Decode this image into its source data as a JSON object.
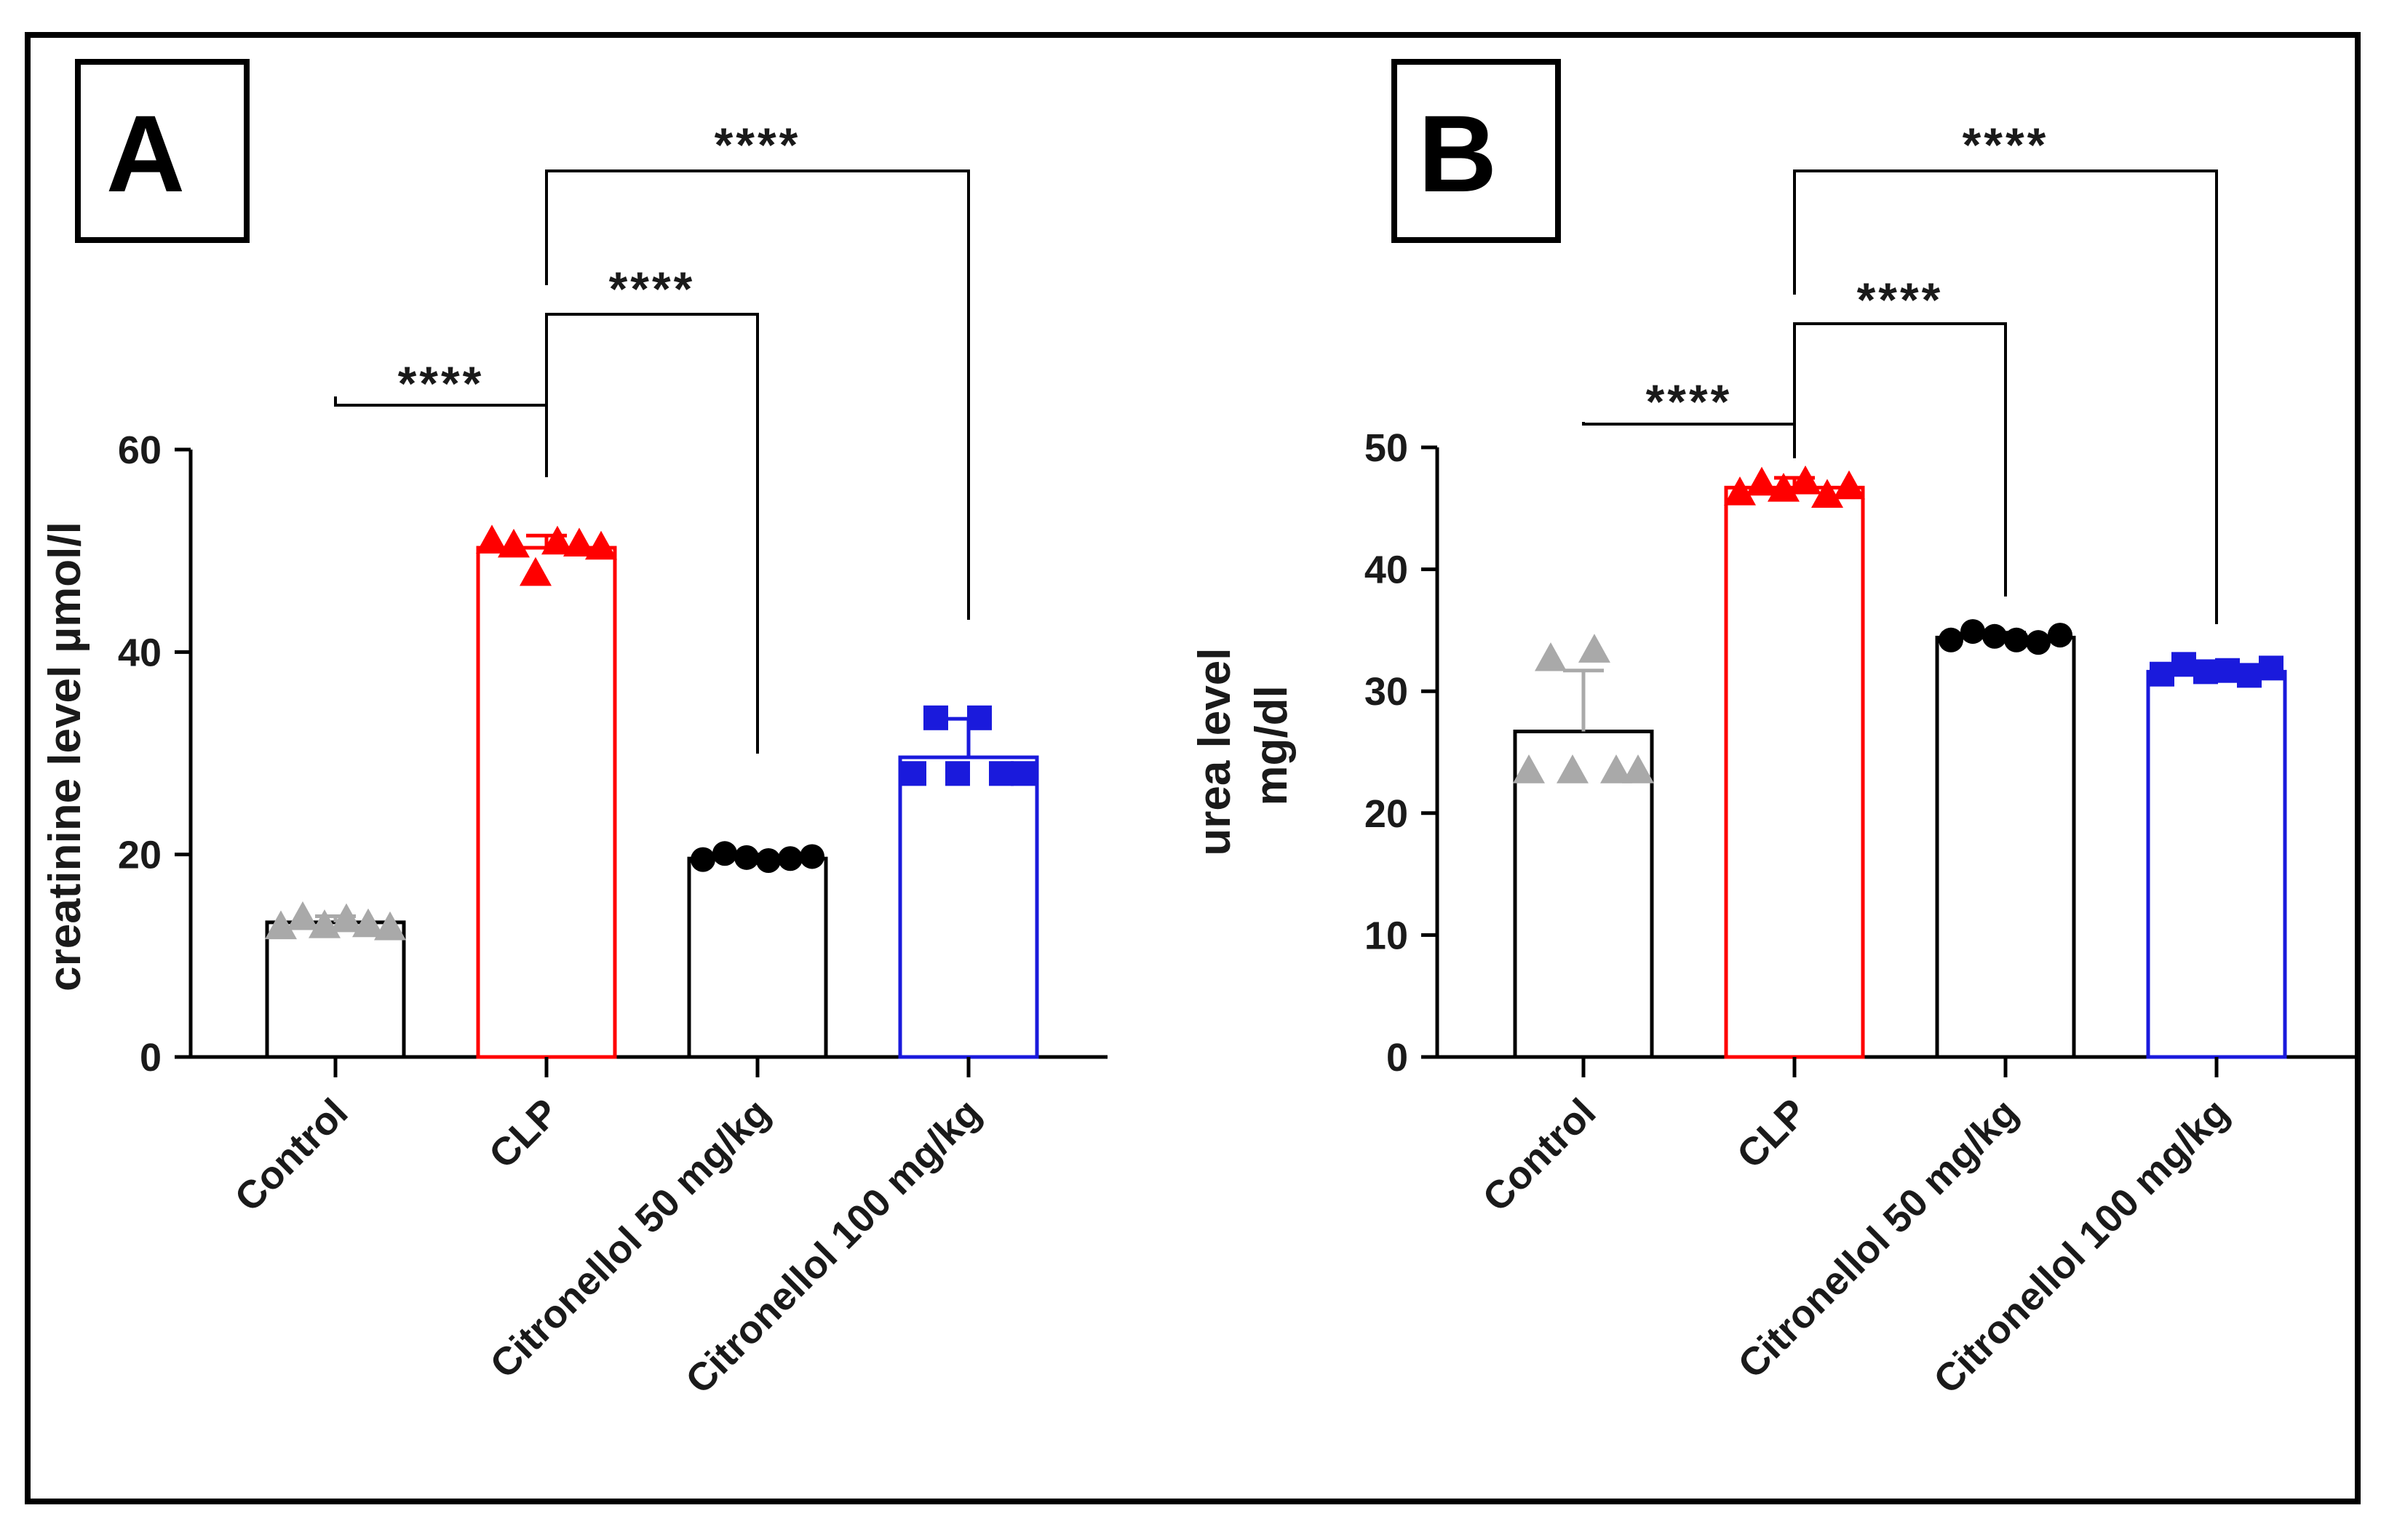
{
  "colors": {
    "control": "#a9a9a9",
    "clp": "#ff0000",
    "cit50": "#000000",
    "cit100": "#1a1adc",
    "axis": "#000000"
  },
  "chart_data": [
    {
      "type": "bar",
      "panel": "A",
      "title": "",
      "xlabel": "",
      "ylabel": "creatinine level µmol/l",
      "ylim": [
        0,
        60
      ],
      "yticks": [
        0,
        20,
        40,
        60
      ],
      "ytick_labels": [
        "0",
        "20",
        "40",
        "60"
      ],
      "categories": [
        "Control",
        "CLP",
        "Citronellol 50 mg/kg",
        "Citronellol 100 mg/kg"
      ],
      "values": [
        13.3,
        50.3,
        19.6,
        29.6
      ],
      "error": [
        0.6,
        1.2,
        0.4,
        3.8
      ],
      "points": [
        [
          12.9,
          13.8,
          13.0,
          13.6,
          13.1,
          12.8
        ],
        [
          51.0,
          50.6,
          47.8,
          50.9,
          50.7,
          50.4
        ],
        [
          19.5,
          20.1,
          19.7,
          19.4,
          19.6,
          19.8
        ],
        [
          28.0,
          33.5,
          28.0,
          33.5,
          28.0,
          28.0
        ]
      ],
      "markers": [
        "triangle",
        "triangle",
        "circle",
        "square"
      ],
      "significance": [
        {
          "from": 0,
          "to": 1,
          "label": "****"
        },
        {
          "from": 1,
          "to": 2,
          "label": "****"
        },
        {
          "from": 1,
          "to": 3,
          "label": "****"
        }
      ]
    },
    {
      "type": "bar",
      "panel": "B",
      "title": "",
      "xlabel": "",
      "ylabel": "urea level mg/dl",
      "ylabel_lines": [
        "urea level",
        "mg/dl"
      ],
      "ylim": [
        0,
        50
      ],
      "yticks": [
        0,
        10,
        20,
        30,
        40,
        50
      ],
      "ytick_labels": [
        "0",
        "10",
        "20",
        "30",
        "40",
        "50"
      ],
      "categories": [
        "Control",
        "CLP",
        "Citronellol 50 mg/kg",
        "Citronellol 100 mg/kg"
      ],
      "values": [
        26.7,
        46.7,
        34.4,
        31.6
      ],
      "error": [
        5.0,
        0.8,
        0.4,
        0.4
      ],
      "points": [
        [
          23.5,
          32.7,
          23.5,
          33.4,
          23.5,
          23.5
        ],
        [
          46.3,
          47.1,
          46.6,
          47.2,
          46.1,
          46.8
        ],
        [
          34.2,
          34.9,
          34.5,
          34.2,
          34.0,
          34.6
        ],
        [
          31.4,
          32.2,
          31.6,
          31.7,
          31.3,
          31.9
        ]
      ],
      "markers": [
        "triangle",
        "triangle",
        "circle",
        "square"
      ],
      "significance": [
        {
          "from": 0,
          "to": 1,
          "label": "****"
        },
        {
          "from": 1,
          "to": 2,
          "label": "****"
        },
        {
          "from": 1,
          "to": 3,
          "label": "****"
        }
      ]
    }
  ]
}
